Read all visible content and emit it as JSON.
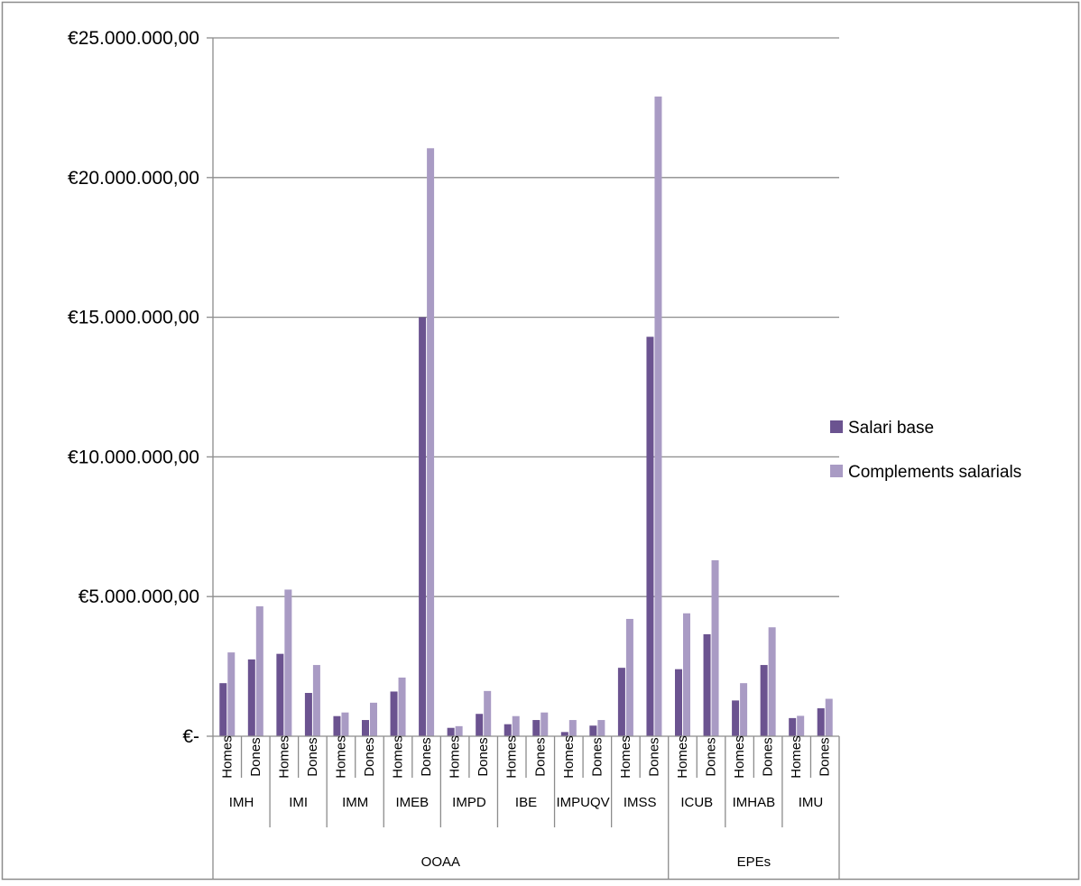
{
  "chart_data": {
    "type": "bar",
    "title": "",
    "xlabel": "",
    "ylabel": "",
    "ylim": [
      0,
      25000000
    ],
    "yticks": [
      {
        "value": 0,
        "label": "€-"
      },
      {
        "value": 5000000,
        "label": "€5.000.000,00"
      },
      {
        "value": 10000000,
        "label": "€10.000.000,00"
      },
      {
        "value": 15000000,
        "label": "€15.000.000,00"
      },
      {
        "value": 20000000,
        "label": "€20.000.000,00"
      },
      {
        "value": 25000000,
        "label": "€25.000.000,00"
      }
    ],
    "grid": "horizontal",
    "legend_position": "right",
    "colors": [
      "#6b5390",
      "#a99bc4"
    ],
    "groups": [
      {
        "label": "OOAA",
        "span": 8
      },
      {
        "label": "EPEs",
        "span": 3
      }
    ],
    "organizations": [
      "IMH",
      "IMI",
      "IMM",
      "IMEB",
      "IMPD",
      "IBE",
      "IMPUQV",
      "IMSS",
      "ICUB",
      "IMHAB",
      "IMU"
    ],
    "categories": [
      "Homes",
      "Dones",
      "Homes",
      "Dones",
      "Homes",
      "Dones",
      "Homes",
      "Dones",
      "Homes",
      "Dones",
      "Homes",
      "Dones",
      "Homes",
      "Dones",
      "Homes",
      "Dones",
      "Homes",
      "Dones",
      "Homes",
      "Dones",
      "Homes",
      "Dones"
    ],
    "series": [
      {
        "name": "Salari base",
        "values": [
          1900000,
          2750000,
          2950000,
          1550000,
          720000,
          580000,
          1600000,
          15000000,
          300000,
          800000,
          430000,
          580000,
          150000,
          380000,
          2450000,
          14300000,
          2400000,
          3650000,
          1280000,
          2550000,
          650000,
          1000000
        ]
      },
      {
        "name": "Complements salarials",
        "values": [
          3000000,
          4650000,
          5250000,
          2550000,
          850000,
          1200000,
          2100000,
          21050000,
          360000,
          1620000,
          720000,
          850000,
          580000,
          580000,
          4200000,
          22900000,
          4400000,
          6300000,
          1900000,
          3900000,
          730000,
          1340000
        ]
      }
    ]
  }
}
